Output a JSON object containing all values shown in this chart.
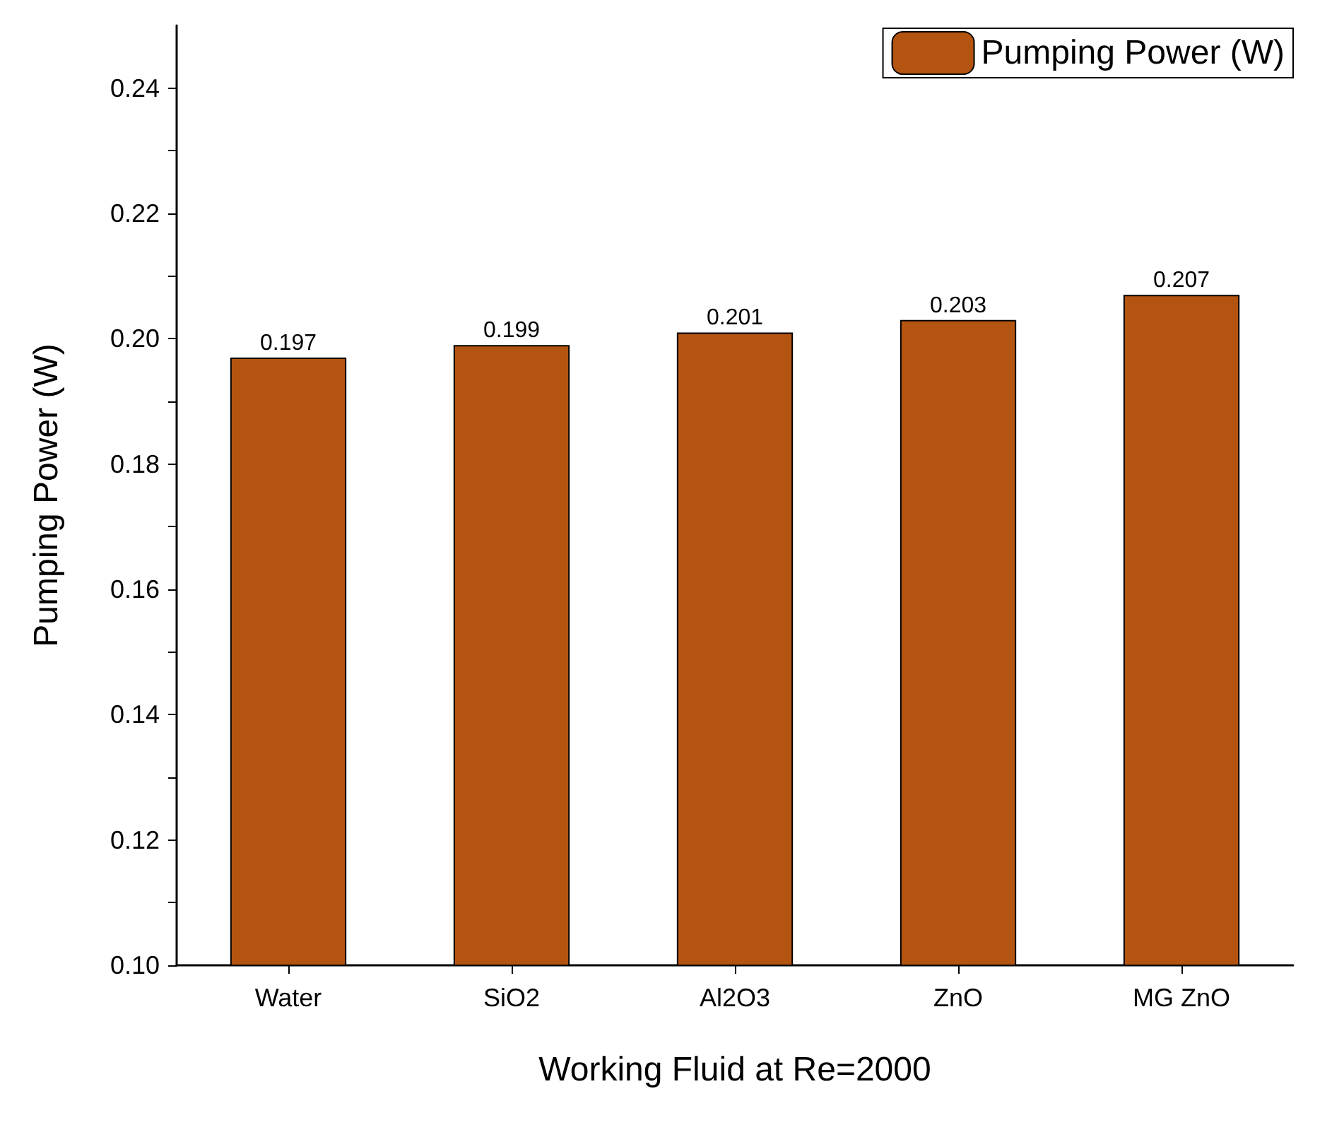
{
  "chart_data": {
    "type": "bar",
    "xlabel": "Working Fluid at Re=2000",
    "ylabel": "Pumping Power (W)",
    "categories": [
      "Water",
      "SiO2",
      "Al2O3",
      "ZnO",
      "MG ZnO"
    ],
    "series": [
      {
        "name": "Pumping Power (W)",
        "color": "#b35411",
        "values": [
          0.197,
          0.199,
          0.201,
          0.203,
          0.207
        ]
      }
    ],
    "ylim": [
      0.1,
      0.25
    ],
    "yticks": [
      {
        "value": 0.1,
        "label": "0.10"
      },
      {
        "value": 0.11,
        "label": null
      },
      {
        "value": 0.12,
        "label": "0.12"
      },
      {
        "value": 0.13,
        "label": null
      },
      {
        "value": 0.14,
        "label": "0.14"
      },
      {
        "value": 0.15,
        "label": null
      },
      {
        "value": 0.16,
        "label": "0.16"
      },
      {
        "value": 0.17,
        "label": null
      },
      {
        "value": 0.18,
        "label": "0.18"
      },
      {
        "value": 0.19,
        "label": null
      },
      {
        "value": 0.2,
        "label": "0.20"
      },
      {
        "value": 0.21,
        "label": null
      },
      {
        "value": 0.22,
        "label": "0.22"
      },
      {
        "value": 0.23,
        "label": null
      },
      {
        "value": 0.24,
        "label": "0.24"
      }
    ],
    "data_labels": true,
    "legend": "top right",
    "grid": false
  }
}
